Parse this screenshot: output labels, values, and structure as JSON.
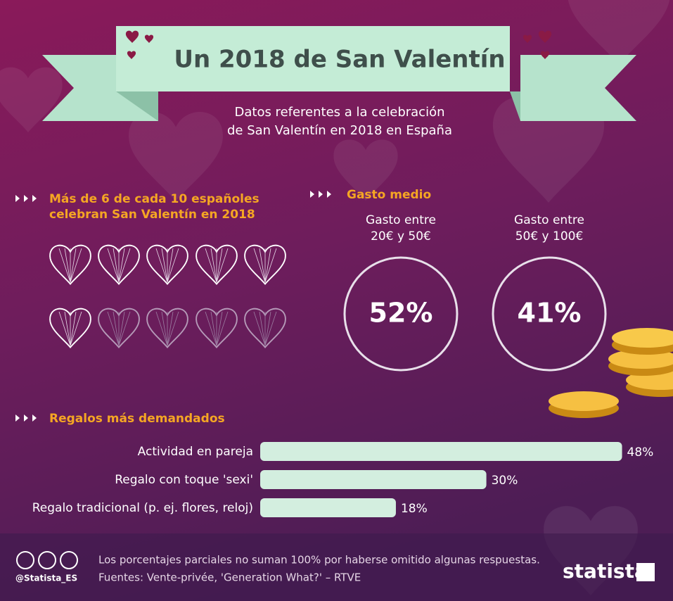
{
  "header": {
    "title": "Un 2018 de San Valentín",
    "subtitle": [
      "Datos referentes a la celebración",
      "de San Valentín en 2018 en España"
    ]
  },
  "celebrate": {
    "title": [
      "Más de 6 de cada 10 españoles",
      "celebran San Valentín en 2018"
    ],
    "hearts_total": 10,
    "hearts_filled": 6
  },
  "spending": {
    "title": "Gasto medio",
    "items": [
      {
        "label": [
          "Gasto entre",
          "20€ y 50€"
        ],
        "value": 52,
        "value_label": "52%"
      },
      {
        "label": [
          "Gasto entre",
          "50€ y 100€"
        ],
        "value": 41,
        "value_label": "41%"
      }
    ]
  },
  "chart_data": {
    "type": "bar",
    "orientation": "horizontal",
    "title": "Regalos más demandados",
    "categories": [
      "Actividad en pareja",
      "Regalo con toque 'sexi'",
      "Regalo tradicional (p. ej. flores, reloj)"
    ],
    "values": [
      48,
      30,
      18
    ],
    "value_labels": [
      "48%",
      "30%",
      "18%"
    ],
    "xlim": [
      0,
      50
    ],
    "color": "#d3eedf"
  },
  "footer": {
    "notes": [
      "Los porcentajes parciales no suman 100% por haberse omitido algunas respuestas.",
      "Fuentes: Vente-privée, 'Generation What?' – RTVE"
    ],
    "handle": "@Statista_ES",
    "brand": "statista"
  }
}
